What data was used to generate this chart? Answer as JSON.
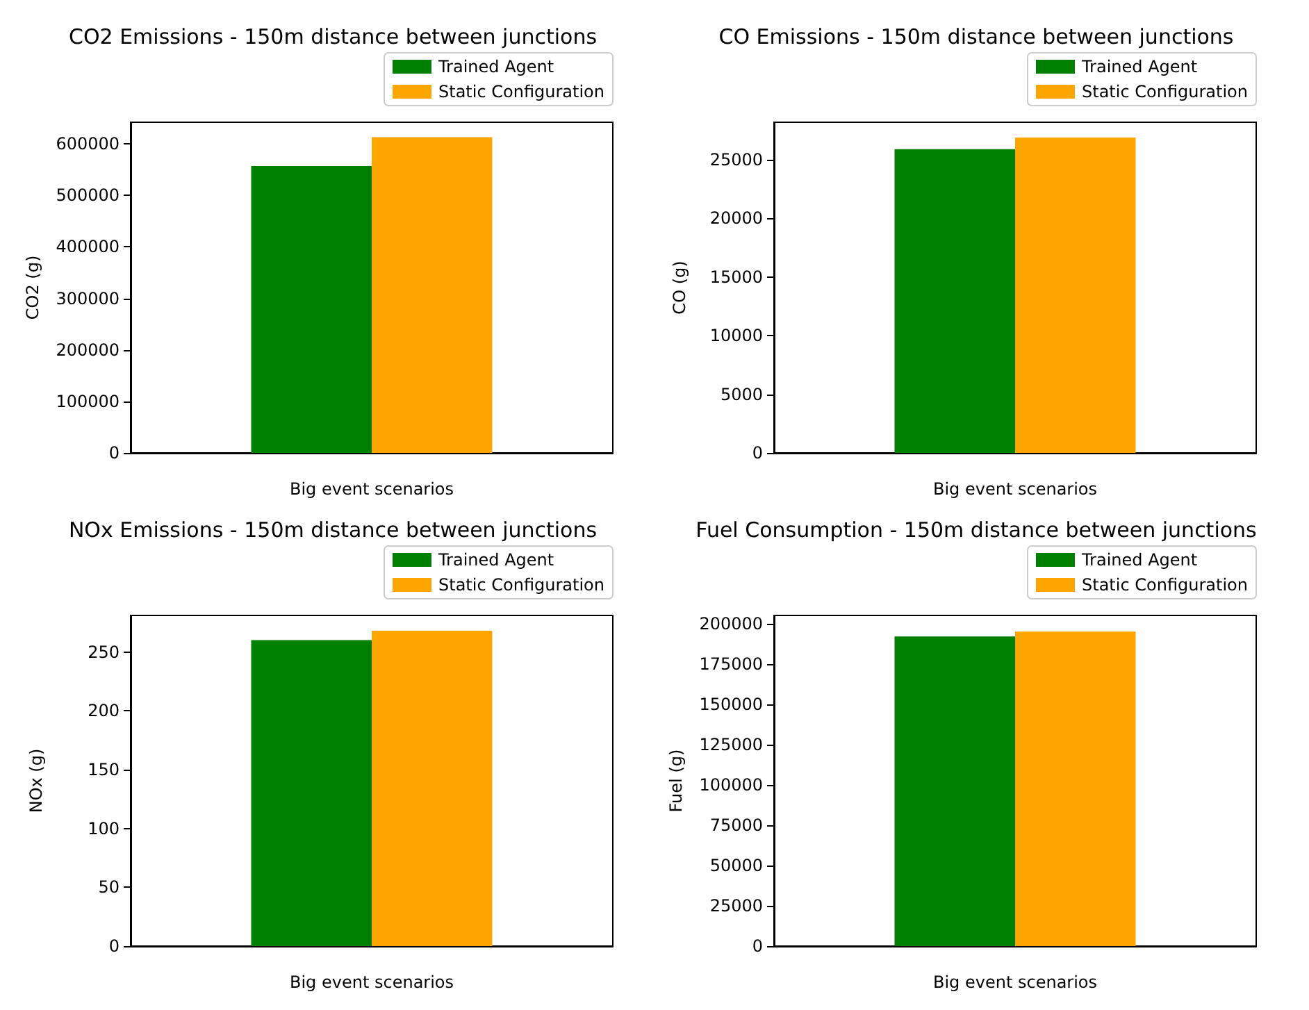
{
  "chart_data": [
    {
      "type": "bar",
      "title": "CO2 Emissions - 150m distance between junctions",
      "xlabel": "Big event scenarios",
      "ylabel": "CO2 (g)",
      "categories": [
        null
      ],
      "series": [
        {
          "name": "Trained Agent",
          "color": "#008000",
          "values": [
            557000
          ]
        },
        {
          "name": "Static Configuration",
          "color": "#ffa500",
          "values": [
            613000
          ]
        }
      ],
      "ylim": [
        0,
        642000
      ],
      "yticks": [
        0,
        100000,
        200000,
        300000,
        400000,
        500000,
        600000
      ],
      "legend": "top right"
    },
    {
      "type": "bar",
      "title": "CO Emissions - 150m distance between junctions",
      "xlabel": "Big event scenarios",
      "ylabel": "CO (g)",
      "categories": [
        null
      ],
      "series": [
        {
          "name": "Trained Agent",
          "color": "#008000",
          "values": [
            25900
          ]
        },
        {
          "name": "Static Configuration",
          "color": "#ffa500",
          "values": [
            26900
          ]
        }
      ],
      "ylim": [
        0,
        28200
      ],
      "yticks": [
        0,
        5000,
        10000,
        15000,
        20000,
        25000
      ],
      "legend": "top right"
    },
    {
      "type": "bar",
      "title": "NOx Emissions - 150m distance between junctions",
      "xlabel": "Big event scenarios",
      "ylabel": "NOx (g)",
      "categories": [
        null
      ],
      "series": [
        {
          "name": "Trained Agent",
          "color": "#008000",
          "values": [
            260
          ]
        },
        {
          "name": "Static Configuration",
          "color": "#ffa500",
          "values": [
            268
          ]
        }
      ],
      "ylim": [
        0,
        281
      ],
      "yticks": [
        0,
        50,
        100,
        150,
        200,
        250
      ],
      "legend": "top right"
    },
    {
      "type": "bar",
      "title": "Fuel Consumption - 150m distance between junctions",
      "xlabel": "Big event scenarios",
      "ylabel": "Fuel (g)",
      "categories": [
        null
      ],
      "series": [
        {
          "name": "Trained Agent",
          "color": "#008000",
          "values": [
            192000
          ]
        },
        {
          "name": "Static Configuration",
          "color": "#ffa500",
          "values": [
            195000
          ]
        }
      ],
      "ylim": [
        0,
        205000
      ],
      "yticks": [
        0,
        25000,
        50000,
        75000,
        100000,
        125000,
        150000,
        175000,
        200000
      ],
      "legend": "top right"
    }
  ]
}
